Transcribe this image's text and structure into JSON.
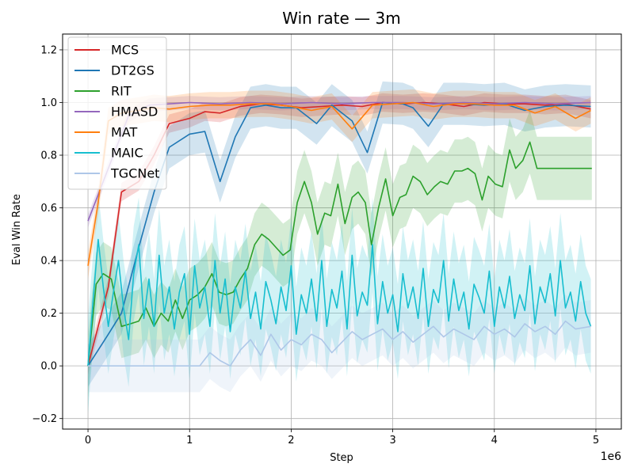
{
  "chart_data": {
    "type": "line",
    "title": "Win rate — 3m",
    "xlabel": "Step",
    "ylabel": "Eval Win Rate",
    "x_offset_label": "1e6",
    "xlim": [
      -250000,
      5250000
    ],
    "ylim": [
      -0.24,
      1.26
    ],
    "x_ticks": [
      0,
      1000000,
      2000000,
      3000000,
      4000000,
      5000000
    ],
    "x_tick_labels": [
      "0",
      "1",
      "2",
      "3",
      "4",
      "5"
    ],
    "y_ticks": [
      -0.2,
      0.0,
      0.2,
      0.4,
      0.6,
      0.8,
      1.0,
      1.2
    ],
    "y_tick_labels": [
      "−0.2",
      "0.0",
      "0.2",
      "0.4",
      "0.6",
      "0.8",
      "1.0",
      "1.2"
    ],
    "grid": true,
    "legend_position": "top-left",
    "series": [
      {
        "name": "MCS",
        "color": "#d62728",
        "band": 0.035,
        "x": [
          0,
          100000,
          200000,
          330000,
          500000,
          650000,
          800000,
          1000000,
          1150000,
          1300000,
          1500000,
          1700000,
          1900000,
          2100000,
          2300000,
          2500000,
          2700000,
          2900000,
          3100000,
          3300000,
          3500000,
          3700000,
          3900000,
          4100000,
          4300000,
          4500000,
          4700000,
          4950000
        ],
        "y": [
          0.0,
          0.15,
          0.3,
          0.66,
          0.7,
          0.8,
          0.92,
          0.94,
          0.965,
          0.96,
          0.985,
          0.995,
          0.99,
          0.98,
          0.985,
          0.99,
          0.985,
          1.0,
          0.995,
          1.0,
          0.995,
          0.985,
          1.0,
          0.995,
          0.995,
          0.99,
          0.995,
          0.975
        ]
      },
      {
        "name": "DT2GS",
        "color": "#1f77b4",
        "band": 0.08,
        "x": [
          0,
          100000,
          200000,
          330000,
          500000,
          650000,
          800000,
          1000000,
          1150000,
          1300000,
          1450000,
          1600000,
          1750000,
          1900000,
          2050000,
          2250000,
          2400000,
          2600000,
          2750000,
          2900000,
          3100000,
          3200000,
          3350000,
          3500000,
          3700000,
          3900000,
          4100000,
          4300000,
          4500000,
          4700000,
          4950000
        ],
        "y": [
          0.0,
          0.06,
          0.12,
          0.2,
          0.45,
          0.66,
          0.83,
          0.88,
          0.89,
          0.7,
          0.87,
          0.98,
          0.99,
          0.98,
          0.98,
          0.92,
          0.99,
          0.93,
          0.81,
          1.0,
          0.995,
          0.98,
          0.91,
          0.995,
          0.995,
          0.99,
          0.995,
          0.97,
          0.985,
          0.99,
          0.985
        ]
      },
      {
        "name": "RIT",
        "color": "#2ca02c",
        "band": 0.12,
        "x": [
          0,
          80000,
          150000,
          230000,
          330000,
          420000,
          500000,
          570000,
          650000,
          720000,
          790000,
          860000,
          930000,
          1000000,
          1080000,
          1150000,
          1220000,
          1290000,
          1360000,
          1430000,
          1500000,
          1570000,
          1640000,
          1710000,
          1780000,
          1850000,
          1920000,
          1990000,
          2060000,
          2130000,
          2200000,
          2260000,
          2330000,
          2390000,
          2460000,
          2530000,
          2600000,
          2660000,
          2730000,
          2790000,
          2860000,
          2930000,
          3000000,
          3070000,
          3130000,
          3200000,
          3270000,
          3340000,
          3410000,
          3470000,
          3540000,
          3610000,
          3680000,
          3740000,
          3810000,
          3880000,
          3940000,
          4010000,
          4080000,
          4150000,
          4210000,
          4280000,
          4350000,
          4420000,
          4480000,
          4550000,
          4620000,
          4690000,
          4750000,
          4820000,
          4890000,
          4960000
        ],
        "y": [
          0.0,
          0.31,
          0.35,
          0.33,
          0.15,
          0.16,
          0.17,
          0.22,
          0.15,
          0.2,
          0.17,
          0.25,
          0.18,
          0.25,
          0.27,
          0.3,
          0.35,
          0.28,
          0.27,
          0.28,
          0.33,
          0.37,
          0.46,
          0.5,
          0.48,
          0.45,
          0.42,
          0.44,
          0.62,
          0.7,
          0.62,
          0.5,
          0.58,
          0.57,
          0.69,
          0.54,
          0.64,
          0.66,
          0.62,
          0.46,
          0.6,
          0.71,
          0.57,
          0.64,
          0.65,
          0.72,
          0.7,
          0.65,
          0.68,
          0.7,
          0.69,
          0.74,
          0.74,
          0.75,
          0.73,
          0.63,
          0.72,
          0.69,
          0.68,
          0.82,
          0.75,
          0.78,
          0.85,
          0.75,
          0.75,
          0.75,
          0.75,
          0.75,
          0.75,
          0.75,
          0.75,
          0.75
        ]
      },
      {
        "name": "HMASD",
        "color": "#9467bd",
        "band": 0.025,
        "x": [
          0,
          200000,
          400000,
          600000,
          800000,
          1000000,
          1300000,
          1600000,
          1900000,
          2200000,
          2500000,
          2800000,
          3100000,
          3400000,
          3700000,
          4000000,
          4300000,
          4600000,
          4950000
        ],
        "y": [
          0.55,
          0.75,
          0.95,
          0.99,
          0.995,
          1.0,
          0.995,
          1.0,
          0.995,
          1.0,
          0.995,
          1.0,
          1.0,
          0.995,
          1.0,
          0.995,
          1.0,
          0.995,
          1.0
        ]
      },
      {
        "name": "MAT",
        "color": "#ff7f0e",
        "band": 0.05,
        "x": [
          0,
          100000,
          200000,
          330000,
          500000,
          650000,
          800000,
          1000000,
          1200000,
          1400000,
          1600000,
          1800000,
          2000000,
          2200000,
          2400000,
          2600000,
          2800000,
          3000000,
          3200000,
          3400000,
          3600000,
          3800000,
          4000000,
          4200000,
          4400000,
          4600000,
          4800000,
          4950000
        ],
        "y": [
          0.38,
          0.62,
          0.93,
          0.96,
          0.97,
          0.98,
          0.975,
          0.985,
          0.99,
          0.99,
          0.995,
          0.995,
          0.985,
          0.97,
          0.985,
          0.9,
          0.99,
          0.995,
          1.0,
          0.985,
          0.995,
          0.995,
          0.99,
          0.99,
          0.96,
          0.985,
          0.94,
          0.97
        ]
      },
      {
        "name": "MAIC",
        "color": "#17becf",
        "band": 0.18,
        "x": [
          0,
          50000,
          100000,
          150000,
          200000,
          250000,
          300000,
          350000,
          400000,
          450000,
          500000,
          550000,
          600000,
          650000,
          700000,
          750000,
          800000,
          850000,
          900000,
          950000,
          1000000,
          1050000,
          1100000,
          1150000,
          1200000,
          1250000,
          1300000,
          1350000,
          1400000,
          1450000,
          1500000,
          1550000,
          1600000,
          1650000,
          1700000,
          1750000,
          1800000,
          1850000,
          1900000,
          1950000,
          2000000,
          2050000,
          2100000,
          2150000,
          2200000,
          2250000,
          2300000,
          2350000,
          2400000,
          2450000,
          2500000,
          2550000,
          2600000,
          2650000,
          2700000,
          2750000,
          2800000,
          2850000,
          2900000,
          2950000,
          3000000,
          3050000,
          3100000,
          3150000,
          3200000,
          3250000,
          3300000,
          3350000,
          3400000,
          3450000,
          3500000,
          3550000,
          3600000,
          3650000,
          3700000,
          3750000,
          3800000,
          3850000,
          3900000,
          3950000,
          4000000,
          4050000,
          4100000,
          4150000,
          4200000,
          4250000,
          4300000,
          4350000,
          4400000,
          4450000,
          4500000,
          4550000,
          4600000,
          4650000,
          4700000,
          4750000,
          4800000,
          4850000,
          4900000,
          4950000
        ],
        "y": [
          0.0,
          0.25,
          0.48,
          0.3,
          0.15,
          0.28,
          0.4,
          0.22,
          0.1,
          0.35,
          0.46,
          0.18,
          0.33,
          0.15,
          0.42,
          0.2,
          0.3,
          0.14,
          0.28,
          0.35,
          0.12,
          0.38,
          0.22,
          0.3,
          0.15,
          0.4,
          0.2,
          0.33,
          0.13,
          0.3,
          0.22,
          0.36,
          0.18,
          0.28,
          0.14,
          0.32,
          0.25,
          0.16,
          0.3,
          0.21,
          0.38,
          0.12,
          0.27,
          0.2,
          0.33,
          0.17,
          0.4,
          0.15,
          0.29,
          0.22,
          0.36,
          0.14,
          0.42,
          0.19,
          0.28,
          0.23,
          0.46,
          0.16,
          0.32,
          0.2,
          0.27,
          0.13,
          0.35,
          0.22,
          0.3,
          0.18,
          0.37,
          0.15,
          0.29,
          0.24,
          0.4,
          0.17,
          0.33,
          0.21,
          0.28,
          0.14,
          0.31,
          0.26,
          0.2,
          0.36,
          0.15,
          0.3,
          0.22,
          0.34,
          0.18,
          0.27,
          0.21,
          0.38,
          0.16,
          0.3,
          0.24,
          0.35,
          0.19,
          0.4,
          0.22,
          0.28,
          0.17,
          0.32,
          0.2,
          0.15
        ]
      },
      {
        "name": "TGCNet",
        "color": "#aec7e8",
        "band": 0.1,
        "x": [
          0,
          200000,
          400000,
          600000,
          800000,
          1000000,
          1100000,
          1200000,
          1300000,
          1400000,
          1500000,
          1600000,
          1700000,
          1800000,
          1900000,
          2000000,
          2100000,
          2200000,
          2300000,
          2400000,
          2500000,
          2600000,
          2700000,
          2800000,
          2900000,
          3000000,
          3100000,
          3200000,
          3300000,
          3400000,
          3500000,
          3600000,
          3700000,
          3800000,
          3900000,
          4000000,
          4100000,
          4200000,
          4300000,
          4400000,
          4500000,
          4600000,
          4700000,
          4800000,
          4950000
        ],
        "y": [
          0.0,
          0.0,
          0.0,
          0.0,
          0.0,
          0.0,
          0.0,
          0.05,
          0.02,
          0.0,
          0.06,
          0.1,
          0.04,
          0.12,
          0.06,
          0.1,
          0.08,
          0.12,
          0.1,
          0.05,
          0.09,
          0.13,
          0.1,
          0.12,
          0.14,
          0.1,
          0.13,
          0.09,
          0.12,
          0.15,
          0.11,
          0.14,
          0.12,
          0.1,
          0.15,
          0.12,
          0.14,
          0.11,
          0.16,
          0.13,
          0.15,
          0.12,
          0.17,
          0.14,
          0.15
        ]
      }
    ]
  }
}
